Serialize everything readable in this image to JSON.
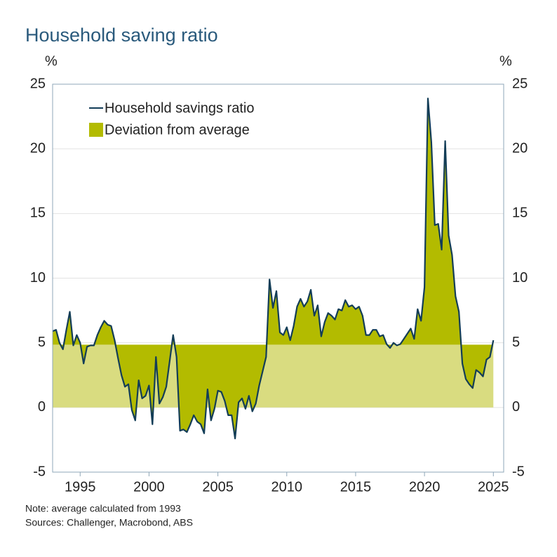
{
  "chart_data": {
    "type": "line",
    "title": "Household saving ratio",
    "ylabel": "%",
    "y2label": "%",
    "xlim": [
      1993.0,
      2025.75
    ],
    "xticks": [
      1995,
      2000,
      2005,
      2010,
      2015,
      2020,
      2025
    ],
    "ylim": [
      -5,
      25
    ],
    "yticks": [
      -5,
      0,
      5,
      10,
      15,
      20,
      25
    ],
    "y2lim": [
      -5,
      25
    ],
    "y2ticks": [
      -5,
      0,
      5,
      10,
      15,
      20,
      25
    ],
    "grid": true,
    "legend": "upper left",
    "x": [
      1993,
      1993.25,
      1993.5,
      1993.75,
      1994,
      1994.25,
      1994.5,
      1994.75,
      1995,
      1995.25,
      1995.5,
      1995.75,
      1996,
      1996.25,
      1996.5,
      1996.75,
      1997,
      1997.25,
      1997.5,
      1997.75,
      1998,
      1998.25,
      1998.5,
      1998.75,
      1999,
      1999.25,
      1999.5,
      1999.75,
      2000,
      2000.25,
      2000.5,
      2000.75,
      2001,
      2001.25,
      2001.5,
      2001.75,
      2002,
      2002.25,
      2002.5,
      2002.75,
      2003,
      2003.25,
      2003.5,
      2003.75,
      2004,
      2004.25,
      2004.5,
      2004.75,
      2005,
      2005.25,
      2005.5,
      2005.75,
      2006,
      2006.25,
      2006.5,
      2006.75,
      2007,
      2007.25,
      2007.5,
      2007.75,
      2008,
      2008.25,
      2008.5,
      2008.75,
      2009,
      2009.25,
      2009.5,
      2009.75,
      2010,
      2010.25,
      2010.5,
      2010.75,
      2011,
      2011.25,
      2011.5,
      2011.75,
      2012,
      2012.25,
      2012.5,
      2012.75,
      2013,
      2013.25,
      2013.5,
      2013.75,
      2014,
      2014.25,
      2014.5,
      2014.75,
      2015,
      2015.25,
      2015.5,
      2015.75,
      2016,
      2016.25,
      2016.5,
      2016.75,
      2017,
      2017.25,
      2017.5,
      2017.75,
      2018,
      2018.25,
      2018.5,
      2018.75,
      2019,
      2019.25,
      2019.5,
      2019.75,
      2020,
      2020.25,
      2020.5,
      2020.75,
      2021,
      2021.25,
      2021.5,
      2021.75,
      2022,
      2022.25,
      2022.5,
      2022.75,
      2023,
      2023.25,
      2023.5,
      2023.75,
      2024,
      2024.25,
      2024.5,
      2024.75,
      2025
    ],
    "series": [
      {
        "name": "Household savings ratio",
        "color": "#133d57",
        "values": [
          5.9,
          6.0,
          5.0,
          4.5,
          6.0,
          7.4,
          4.8,
          5.6,
          5.0,
          3.4,
          4.7,
          4.8,
          4.8,
          5.6,
          6.2,
          6.7,
          6.4,
          6.3,
          5.2,
          3.8,
          2.5,
          1.6,
          1.8,
          -0.2,
          -1.0,
          2.1,
          0.7,
          0.9,
          1.7,
          -1.3,
          3.9,
          0.3,
          0.8,
          1.6,
          3.6,
          5.6,
          3.9,
          -1.8,
          -1.7,
          -1.9,
          -1.3,
          -0.6,
          -1.1,
          -1.3,
          -2.0,
          1.4,
          -1.0,
          -0.1,
          1.3,
          1.2,
          0.5,
          -0.6,
          -0.6,
          -2.4,
          0.4,
          0.7,
          -0.1,
          0.9,
          -0.3,
          0.3,
          1.7,
          2.8,
          3.9,
          9.9,
          7.7,
          9.0,
          5.8,
          5.6,
          6.2,
          5.2,
          6.3,
          7.8,
          8.4,
          7.8,
          8.2,
          9.1,
          7.1,
          7.9,
          5.5,
          6.6,
          7.3,
          7.1,
          6.8,
          7.6,
          7.5,
          8.3,
          7.8,
          7.9,
          7.6,
          7.8,
          7.1,
          5.6,
          5.6,
          6.0,
          6.0,
          5.5,
          5.6,
          4.9,
          4.6,
          5.0,
          4.8,
          4.9,
          5.3,
          5.7,
          6.1,
          5.3,
          7.6,
          6.7,
          9.3,
          23.9,
          20.5,
          14.1,
          14.2,
          12.2,
          20.6,
          13.3,
          11.8,
          8.6,
          7.4,
          3.4,
          2.2,
          1.8,
          1.5,
          2.9,
          2.7,
          2.4,
          3.7,
          3.9,
          5.2
        ]
      }
    ],
    "deviation": {
      "name": "Deviation from average",
      "color": "#b3bb00",
      "band_color": "#d9dc80",
      "average": 4.85
    },
    "notes": [
      "Note: average calculated from 1993",
      "Sources: Challenger, Macrobond, ABS"
    ]
  }
}
